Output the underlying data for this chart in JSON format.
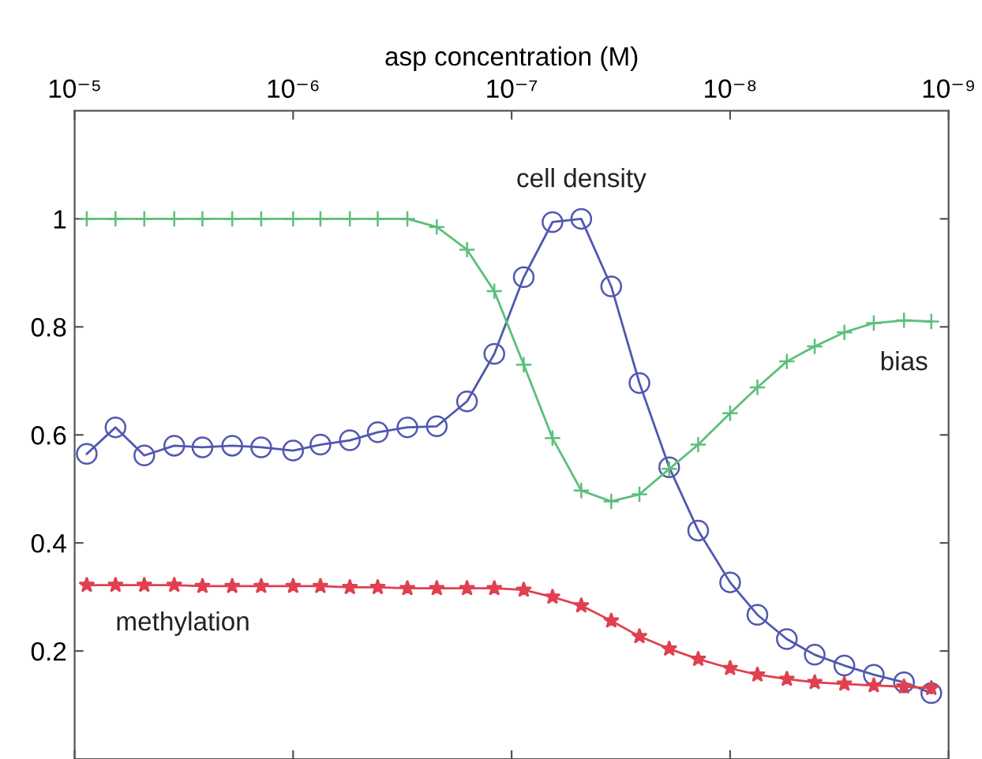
{
  "chart_data": {
    "type": "line",
    "xlabel": "asp concentration (M)",
    "log": "x",
    "xlim": [
      1e-05,
      1e-09
    ],
    "xticks": [
      {
        "value": 1e-05,
        "label": "10⁻⁵"
      },
      {
        "value": 1e-06,
        "label": "10⁻⁶"
      },
      {
        "value": 1e-07,
        "label": "10⁻⁷"
      },
      {
        "value": 1e-08,
        "label": "10⁻⁸"
      },
      {
        "value": 1e-09,
        "label": "10⁻⁹"
      }
    ],
    "ylim": [
      0,
      1.2
    ],
    "yticks": [
      {
        "value": 0.2,
        "label": "0.2"
      },
      {
        "value": 0.4,
        "label": "0.4"
      },
      {
        "value": 0.6,
        "label": "0.6"
      },
      {
        "value": 0.8,
        "label": "0.8"
      },
      {
        "value": 1,
        "label": "1"
      }
    ],
    "tick_labels": "xy_top_left",
    "grid": false,
    "legend": false,
    "line_style": "solid",
    "x": [
      8.8e-06,
      6.5e-06,
      4.8e-06,
      3.5e-06,
      2.6e-06,
      1.9e-06,
      1.4e-06,
      1e-06,
      7.5e-07,
      5.5e-07,
      4.1e-07,
      3e-07,
      2.2e-07,
      1.6e-07,
      1.2e-07,
      8.8e-08,
      6.5e-08,
      4.8e-08,
      3.5e-08,
      2.6e-08,
      1.9e-08,
      1.4e-08,
      1e-08,
      7.5e-09,
      5.5e-09,
      4.1e-09,
      3e-09,
      2.2e-09,
      1.6e-09,
      1.2e-09
    ],
    "series": [
      {
        "name": "cell density",
        "color": "#5058b0",
        "marker": "circle",
        "values": [
          0.565,
          0.614,
          0.562,
          0.58,
          0.577,
          0.58,
          0.577,
          0.571,
          0.582,
          0.59,
          0.605,
          0.614,
          0.616,
          0.662,
          0.75,
          0.892,
          0.994,
          1.0,
          0.875,
          0.696,
          0.54,
          0.423,
          0.327,
          0.267,
          0.222,
          0.193,
          0.173,
          0.156,
          0.142,
          0.122
        ]
      },
      {
        "name": "bias",
        "color": "#5cbf7a",
        "marker": "cross",
        "values": [
          1.0,
          1.0,
          1.0,
          1.0,
          1.0,
          1.0,
          1.0,
          1.0,
          1.0,
          1.0,
          1.0,
          1.0,
          0.985,
          0.943,
          0.866,
          0.73,
          0.594,
          0.497,
          0.477,
          0.49,
          0.537,
          0.582,
          0.64,
          0.688,
          0.736,
          0.764,
          0.79,
          0.807,
          0.812,
          0.81
        ]
      },
      {
        "name": "methylation",
        "color": "#e04050",
        "marker": "star",
        "values": [
          0.322,
          0.322,
          0.322,
          0.322,
          0.32,
          0.32,
          0.32,
          0.32,
          0.32,
          0.318,
          0.318,
          0.316,
          0.316,
          0.316,
          0.316,
          0.313,
          0.3,
          0.284,
          0.256,
          0.227,
          0.204,
          0.185,
          0.168,
          0.156,
          0.148,
          0.142,
          0.139,
          0.136,
          0.134,
          0.131
        ]
      }
    ]
  }
}
